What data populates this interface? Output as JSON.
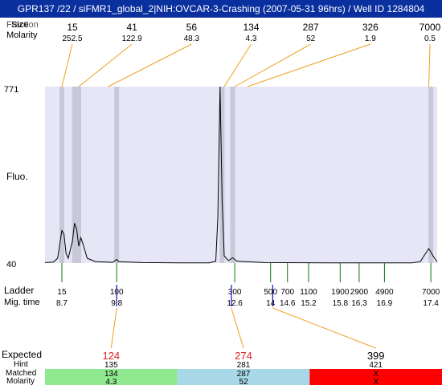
{
  "title": "GPR137 /22 / siFMR1_global_2|NIH:OVCAR-3-Crashing (2007-05-31 96hrs) / Well ID 1284804",
  "row_labels": {
    "fraction_overlap": "Fraction",
    "size": "Size",
    "molarity": "Molarity",
    "fluo": "Fluo.",
    "ladder": "Ladder",
    "mig_time": "Mig. time",
    "expected": "Expected",
    "hint": "Hint",
    "matched": "Matched",
    "molarity_bottom": "Molarity"
  },
  "colors": {
    "title_bg": "#0a2f9e",
    "plot_bg": "#e6e6f6",
    "band": "#c8c8d8",
    "orange": "#f0a020",
    "green_tick": "#0a7a0a",
    "blue_tick": "#1010c0",
    "red_text": "#e02020",
    "cell_green": "#90e890",
    "cell_blue": "#a8d8e8",
    "cell_red": "#ff0000"
  },
  "chart_data": {
    "type": "line",
    "y_axis": {
      "top_label": "771",
      "bottom_label": "40",
      "ylim": [
        40,
        771
      ]
    },
    "x_axis": {
      "label": "Mig. time",
      "xlim": [
        8.3,
        17.6
      ]
    },
    "peaks_top": [
      {
        "size": "15",
        "molarity": "252.5",
        "time": 8.7
      },
      {
        "size": "41",
        "molarity": "122.9",
        "time": 9.1
      },
      {
        "size": "56",
        "molarity": "48.3",
        "time": 9.8
      },
      {
        "size": "134",
        "molarity": "4.3",
        "time": 12.55
      },
      {
        "size": "287",
        "molarity": "52",
        "time": 12.8
      },
      {
        "size": "326",
        "molarity": "1.9",
        "time": 13.1
      },
      {
        "size": "7000",
        "molarity": "0.5",
        "time": 17.4
      }
    ],
    "trace": [
      [
        8.3,
        42
      ],
      [
        8.5,
        44
      ],
      [
        8.6,
        60
      ],
      [
        8.7,
        175
      ],
      [
        8.75,
        160
      ],
      [
        8.8,
        80
      ],
      [
        8.85,
        60
      ],
      [
        8.95,
        130
      ],
      [
        9.0,
        205
      ],
      [
        9.05,
        180
      ],
      [
        9.1,
        110
      ],
      [
        9.15,
        145
      ],
      [
        9.2,
        120
      ],
      [
        9.3,
        60
      ],
      [
        9.5,
        46
      ],
      [
        9.9,
        43
      ],
      [
        10.0,
        55
      ],
      [
        10.05,
        46
      ],
      [
        10.6,
        42
      ],
      [
        11.5,
        41
      ],
      [
        12.2,
        41
      ],
      [
        12.35,
        48
      ],
      [
        12.4,
        230
      ],
      [
        12.45,
        771
      ],
      [
        12.5,
        300
      ],
      [
        12.55,
        70
      ],
      [
        12.65,
        50
      ],
      [
        12.75,
        62
      ],
      [
        12.85,
        48
      ],
      [
        13.5,
        42
      ],
      [
        15.0,
        41
      ],
      [
        17.0,
        41
      ],
      [
        17.2,
        46
      ],
      [
        17.4,
        100
      ],
      [
        17.5,
        70
      ],
      [
        17.6,
        45
      ]
    ],
    "bands_time": [
      8.7,
      9.0,
      9.1,
      10.0,
      12.5,
      12.75,
      17.45
    ],
    "ladder": [
      {
        "size": "15",
        "time": "8.7",
        "t": 8.7
      },
      {
        "size": "100",
        "time": "9.8",
        "t": 10.0
      },
      {
        "size": "300",
        "time": "12.6",
        "t": 12.8
      },
      {
        "size": "500",
        "time": "14",
        "t": 13.65
      },
      {
        "size": "700",
        "time": "14.6",
        "t": 14.05
      },
      {
        "size": "1100",
        "time": "15.2",
        "t": 14.55
      },
      {
        "size": "1900",
        "time": "15.8",
        "t": 15.3
      },
      {
        "size": "2900",
        "time": "16.3",
        "t": 15.75
      },
      {
        "size": "4900",
        "time": "16.9",
        "t": 16.35
      },
      {
        "size": "7000",
        "time": "17.4",
        "t": 17.45
      }
    ],
    "expected_ticks_time": [
      10.0,
      12.72,
      13.7
    ],
    "expected": [
      {
        "expected": "124",
        "hint": "135",
        "matched": "134",
        "molarity": "4.3",
        "status": "green",
        "expected_color": "red"
      },
      {
        "expected": "274",
        "hint": "281",
        "matched": "287",
        "molarity": "52",
        "status": "blue",
        "expected_color": "red"
      },
      {
        "expected": "399",
        "hint": "421",
        "matched": "X",
        "molarity": "X",
        "status": "red",
        "expected_color": "black"
      }
    ]
  }
}
